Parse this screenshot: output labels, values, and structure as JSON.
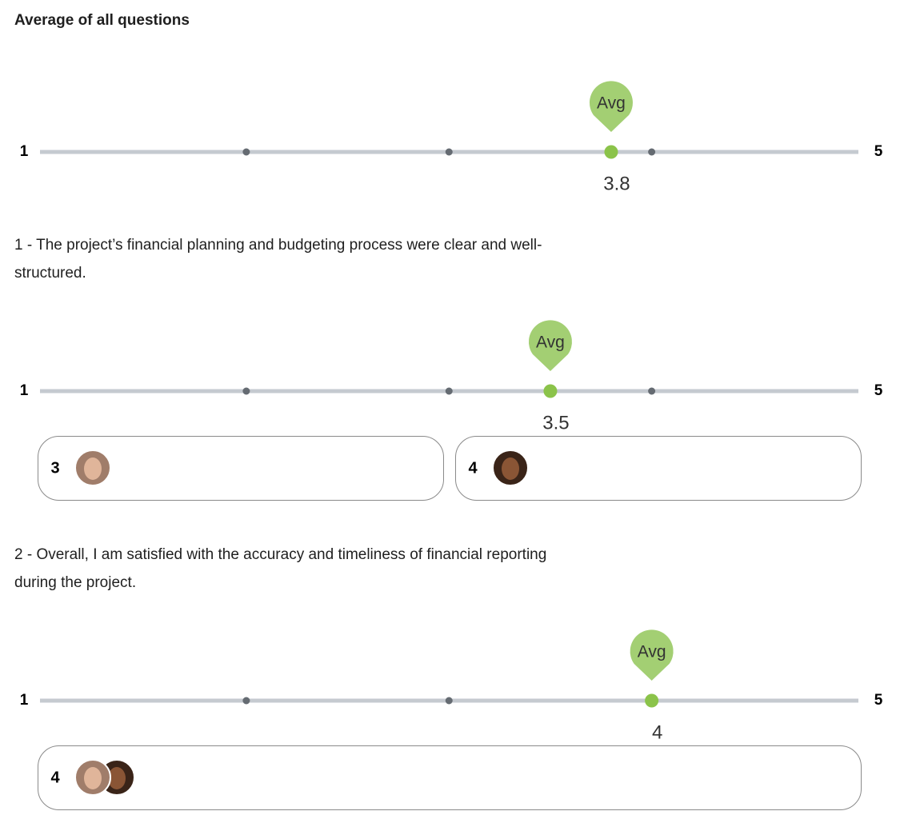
{
  "sections": [
    {
      "title": "Average of all questions",
      "scale": {
        "min": 1,
        "max": 5,
        "ticks": [
          2,
          3,
          4
        ]
      },
      "marker_label": "Avg",
      "average": 3.8,
      "responses": []
    },
    {
      "title": "1 - The project’s financial planning and budgeting process were clear and well-structured.",
      "scale": {
        "min": 1,
        "max": 5,
        "ticks": [
          2,
          3,
          4
        ]
      },
      "marker_label": "Avg",
      "average": 3.5,
      "responses": [
        {
          "value": 3
        },
        {
          "value": 4
        }
      ]
    },
    {
      "title": "2 - Overall, I am satisfied with the accuracy and timeliness of financial reporting during the project.",
      "scale": {
        "min": 1,
        "max": 5,
        "ticks": [
          2,
          3,
          4
        ]
      },
      "marker_label": "Avg",
      "average": 4,
      "responses": [
        {
          "value": 4
        }
      ]
    }
  ]
}
